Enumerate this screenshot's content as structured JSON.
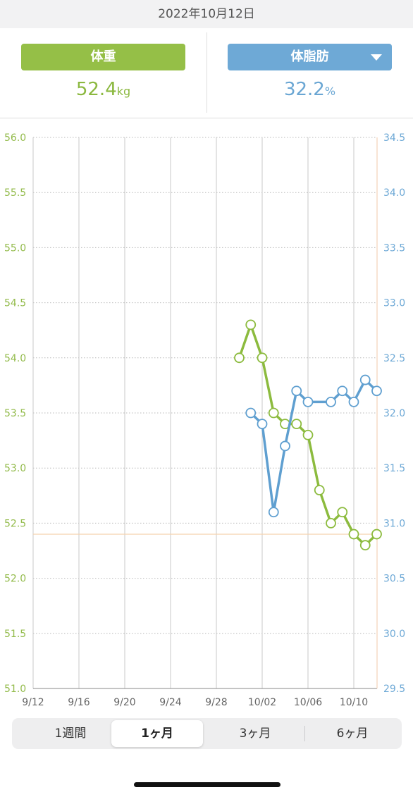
{
  "header": {
    "date": "2022年10月12日"
  },
  "weight": {
    "label": "体重",
    "value": "52.4",
    "unit": "kg",
    "color": "#95bf47"
  },
  "body_fat": {
    "label": "体脂肪",
    "value": "32.2",
    "unit": "%",
    "color": "#6ea9d6"
  },
  "tabs": [
    {
      "label": "1週間",
      "active": false
    },
    {
      "label": "1ヶ月",
      "active": true
    },
    {
      "label": "3ヶ月",
      "active": false
    },
    {
      "label": "6ヶ月",
      "active": false
    }
  ],
  "chart_data": {
    "type": "line",
    "x_ticks": [
      "9/12",
      "9/16",
      "9/20",
      "9/24",
      "9/28",
      "10/02",
      "10/06",
      "10/10"
    ],
    "xlim": [
      "2022-09-12",
      "2022-10-12"
    ],
    "y_left": {
      "ticks": [
        "56.0",
        "55.5",
        "55.0",
        "54.5",
        "54.0",
        "53.5",
        "53.0",
        "52.5",
        "52.0",
        "51.5",
        "51.0"
      ],
      "ylim": [
        51.0,
        56.0
      ]
    },
    "y_right": {
      "ticks": [
        "34.5",
        "34.0",
        "33.5",
        "33.0",
        "32.5",
        "32.0",
        "31.5",
        "31.0",
        "30.5",
        "30.0",
        "29.5"
      ],
      "ylim": [
        29.5,
        34.5
      ]
    },
    "reference_line": 52.4,
    "series": [
      {
        "axis": "left",
        "color": "#8cbb3e",
        "points": [
          [
            "2022-09-30",
            54.0
          ],
          [
            "2022-10-01",
            54.3
          ],
          [
            "2022-10-02",
            54.0
          ],
          [
            "2022-10-03",
            53.5
          ],
          [
            "2022-10-04",
            53.4
          ],
          [
            "2022-10-05",
            53.4
          ],
          [
            "2022-10-06",
            53.3
          ],
          [
            "2022-10-07",
            52.8
          ],
          [
            "2022-10-08",
            52.5
          ],
          [
            "2022-10-09",
            52.6
          ],
          [
            "2022-10-10",
            52.4
          ],
          [
            "2022-10-11",
            52.3
          ],
          [
            "2022-10-12",
            52.4
          ]
        ]
      },
      {
        "axis": "right",
        "color": "#5f9fd0",
        "points": [
          [
            "2022-10-01",
            32.0
          ],
          [
            "2022-10-02",
            31.9
          ],
          [
            "2022-10-03",
            31.1
          ],
          [
            "2022-10-04",
            31.7
          ],
          [
            "2022-10-05",
            32.2
          ],
          [
            "2022-10-06",
            32.1
          ],
          [
            "2022-10-08",
            32.1
          ],
          [
            "2022-10-09",
            32.2
          ],
          [
            "2022-10-10",
            32.1
          ],
          [
            "2022-10-11",
            32.3
          ],
          [
            "2022-10-12",
            32.2
          ]
        ]
      }
    ]
  }
}
